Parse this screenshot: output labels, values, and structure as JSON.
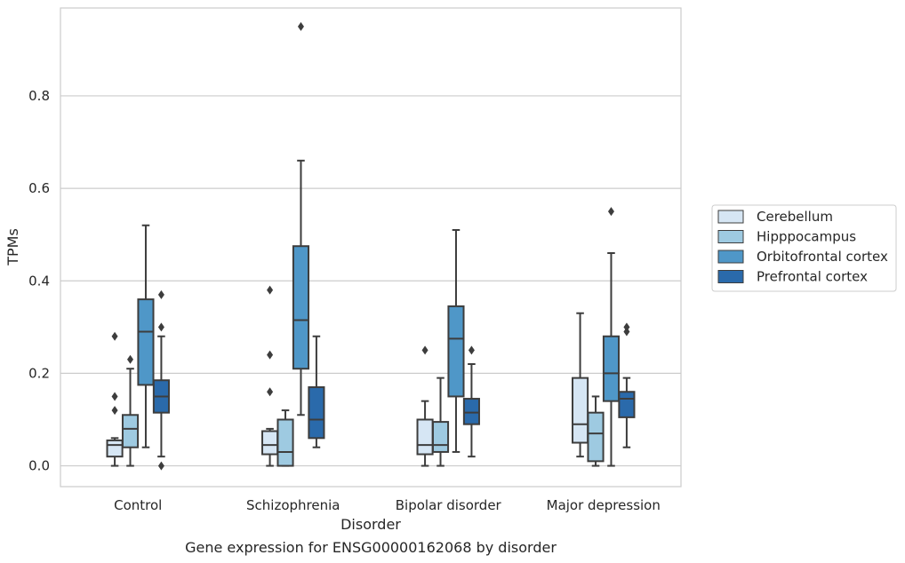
{
  "chart_data": {
    "type": "box",
    "xlabel": "Disorder",
    "ylabel": "TPMs",
    "caption": "Gene expression for ENSG00000162068 by disorder",
    "ylim": [
      -0.045,
      0.99
    ],
    "yticks": [
      0.0,
      0.2,
      0.4,
      0.6,
      0.8
    ],
    "ytick_labels": [
      "0.0",
      "0.2",
      "0.4",
      "0.6",
      "0.8"
    ],
    "grid": "horizontal",
    "legend_position": "right",
    "categories": [
      "Control",
      "Schizophrenia",
      "Bipolar disorder",
      "Major depression"
    ],
    "series": [
      {
        "name": "Cerebellum",
        "color": "#d6e6f4",
        "boxes": [
          {
            "whislo": 0.0,
            "q1": 0.02,
            "med": 0.045,
            "q3": 0.055,
            "whishi": 0.06,
            "fliers": [
              0.12,
              0.15,
              0.28
            ]
          },
          {
            "whislo": 0.0,
            "q1": 0.025,
            "med": 0.045,
            "q3": 0.075,
            "whishi": 0.08,
            "fliers": [
              0.16,
              0.24,
              0.38
            ]
          },
          {
            "whislo": 0.0,
            "q1": 0.025,
            "med": 0.045,
            "q3": 0.1,
            "whishi": 0.14,
            "fliers": [
              0.25
            ]
          },
          {
            "whislo": 0.02,
            "q1": 0.05,
            "med": 0.09,
            "q3": 0.19,
            "whishi": 0.33,
            "fliers": []
          }
        ]
      },
      {
        "name": "Hipppocampus",
        "color": "#9ecae1",
        "boxes": [
          {
            "whislo": 0.0,
            "q1": 0.04,
            "med": 0.08,
            "q3": 0.11,
            "whishi": 0.21,
            "fliers": [
              0.23
            ]
          },
          {
            "whislo": 0.0,
            "q1": 0.0,
            "med": 0.03,
            "q3": 0.1,
            "whishi": 0.12,
            "fliers": []
          },
          {
            "whislo": 0.0,
            "q1": 0.03,
            "med": 0.045,
            "q3": 0.095,
            "whishi": 0.19,
            "fliers": []
          },
          {
            "whislo": 0.0,
            "q1": 0.01,
            "med": 0.07,
            "q3": 0.115,
            "whishi": 0.15,
            "fliers": []
          }
        ]
      },
      {
        "name": "Orbitofrontal cortex",
        "color": "#4f97c8",
        "boxes": [
          {
            "whislo": 0.04,
            "q1": 0.175,
            "med": 0.29,
            "q3": 0.36,
            "whishi": 0.52,
            "fliers": []
          },
          {
            "whislo": 0.11,
            "q1": 0.21,
            "med": 0.315,
            "q3": 0.475,
            "whishi": 0.66,
            "fliers": [
              0.95
            ]
          },
          {
            "whislo": 0.03,
            "q1": 0.15,
            "med": 0.275,
            "q3": 0.345,
            "whishi": 0.51,
            "fliers": []
          },
          {
            "whislo": 0.0,
            "q1": 0.14,
            "med": 0.2,
            "q3": 0.28,
            "whishi": 0.46,
            "fliers": [
              0.55
            ]
          }
        ]
      },
      {
        "name": "Prefrontal cortex",
        "color": "#2a6aab",
        "boxes": [
          {
            "whislo": 0.02,
            "q1": 0.115,
            "med": 0.15,
            "q3": 0.185,
            "whishi": 0.28,
            "fliers": [
              0.0,
              0.3,
              0.37
            ]
          },
          {
            "whislo": 0.04,
            "q1": 0.06,
            "med": 0.1,
            "q3": 0.17,
            "whishi": 0.28,
            "fliers": []
          },
          {
            "whislo": 0.02,
            "q1": 0.09,
            "med": 0.115,
            "q3": 0.145,
            "whishi": 0.22,
            "fliers": [
              0.25
            ]
          },
          {
            "whislo": 0.04,
            "q1": 0.105,
            "med": 0.145,
            "q3": 0.16,
            "whishi": 0.19,
            "fliers": [
              0.29,
              0.3
            ]
          }
        ]
      }
    ]
  }
}
